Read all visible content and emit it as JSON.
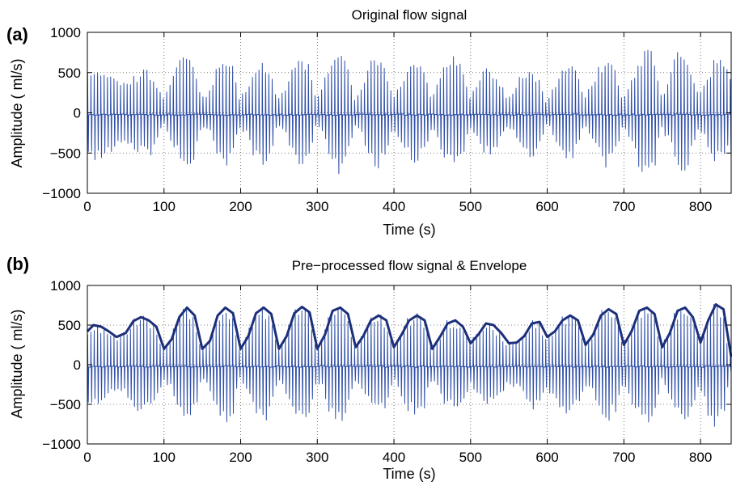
{
  "chart_data": [
    {
      "panel_label": "(a)",
      "type": "line",
      "title": "Original flow signal",
      "xlabel": "Time (s)",
      "ylabel": "Amplitude ( ml/s)",
      "xlim": [
        0,
        840
      ],
      "ylim": [
        -1000,
        1000
      ],
      "xticks": [
        0,
        100,
        200,
        300,
        400,
        500,
        600,
        700,
        800
      ],
      "yticks": [
        -1000,
        -500,
        0,
        500,
        1000
      ],
      "ytick_labels": [
        "−1000",
        "−500",
        "0",
        "500",
        "1000"
      ],
      "grid": "dotted",
      "line_color": "#2f4fa8",
      "series": [
        {
          "style": "oscillation",
          "cycle_period_s": 4.3,
          "envelope_x": [
            0,
            8,
            18,
            28,
            38,
            50,
            60,
            70,
            80,
            90,
            100,
            110,
            120,
            130,
            140,
            150,
            160,
            170,
            180,
            190,
            200,
            210,
            220,
            230,
            240,
            250,
            260,
            270,
            280,
            290,
            300,
            310,
            320,
            330,
            340,
            350,
            360,
            370,
            380,
            390,
            400,
            410,
            420,
            430,
            440,
            450,
            460,
            470,
            480,
            490,
            500,
            510,
            520,
            530,
            540,
            550,
            560,
            570,
            580,
            590,
            600,
            610,
            620,
            630,
            640,
            650,
            660,
            670,
            680,
            690,
            700,
            710,
            720,
            730,
            740,
            750,
            760,
            770,
            780,
            790,
            800,
            810,
            820,
            830,
            840
          ],
          "envelope_y": [
            450,
            560,
            560,
            520,
            450,
            350,
            420,
            480,
            520,
            440,
            160,
            380,
            580,
            700,
            560,
            200,
            250,
            520,
            650,
            600,
            180,
            300,
            560,
            640,
            520,
            150,
            300,
            600,
            700,
            600,
            150,
            350,
            700,
            780,
            600,
            180,
            300,
            600,
            700,
            580,
            200,
            350,
            560,
            620,
            520,
            200,
            380,
            600,
            760,
            620,
            200,
            330,
            520,
            520,
            380,
            170,
            330,
            500,
            560,
            420,
            140,
            320,
            520,
            600,
            480,
            170,
            350,
            560,
            650,
            520,
            160,
            350,
            620,
            780,
            700,
            200,
            380,
            700,
            700,
            450,
            200,
            420,
            650,
            620,
            450
          ]
        }
      ]
    },
    {
      "panel_label": "(b)",
      "type": "line",
      "title": "Pre−processed flow signal & Envelope",
      "xlabel": "Time (s)",
      "ylabel": "Amplitude ( ml/s)",
      "xlim": [
        0,
        840
      ],
      "ylim": [
        -1000,
        1000
      ],
      "xticks": [
        0,
        100,
        200,
        300,
        400,
        500,
        600,
        700,
        800
      ],
      "yticks": [
        -1000,
        -500,
        0,
        500,
        1000
      ],
      "ytick_labels": [
        "−1000",
        "−500",
        "0",
        "500",
        "1000"
      ],
      "grid": "dotted",
      "line_color": "#2f4fa8",
      "envelope_color": "#1c2f7a",
      "series": [
        {
          "style": "oscillation",
          "cycle_period_s": 4.3
        },
        {
          "style": "envelope",
          "x": [
            0,
            8,
            18,
            28,
            38,
            50,
            60,
            70,
            80,
            90,
            100,
            110,
            120,
            130,
            140,
            150,
            160,
            170,
            180,
            190,
            200,
            210,
            220,
            230,
            240,
            250,
            260,
            270,
            280,
            290,
            300,
            310,
            320,
            330,
            340,
            350,
            360,
            370,
            380,
            390,
            400,
            410,
            420,
            430,
            440,
            450,
            460,
            470,
            480,
            490,
            500,
            510,
            520,
            530,
            540,
            550,
            560,
            570,
            580,
            590,
            600,
            610,
            620,
            630,
            640,
            650,
            660,
            670,
            680,
            690,
            700,
            710,
            720,
            730,
            740,
            750,
            760,
            770,
            780,
            790,
            800,
            810,
            820,
            830,
            840
          ],
          "y": [
            420,
            500,
            480,
            420,
            350,
            400,
            550,
            600,
            560,
            480,
            200,
            320,
            600,
            720,
            620,
            200,
            300,
            620,
            720,
            650,
            200,
            360,
            650,
            720,
            640,
            200,
            360,
            650,
            730,
            660,
            200,
            380,
            680,
            720,
            640,
            220,
            360,
            560,
            620,
            560,
            220,
            380,
            560,
            620,
            560,
            200,
            350,
            520,
            560,
            480,
            270,
            380,
            520,
            500,
            400,
            270,
            280,
            360,
            520,
            540,
            350,
            420,
            560,
            620,
            560,
            250,
            380,
            620,
            700,
            640,
            250,
            420,
            680,
            720,
            640,
            220,
            400,
            680,
            720,
            600,
            280,
            560,
            760,
            700,
            100
          ]
        }
      ]
    }
  ]
}
